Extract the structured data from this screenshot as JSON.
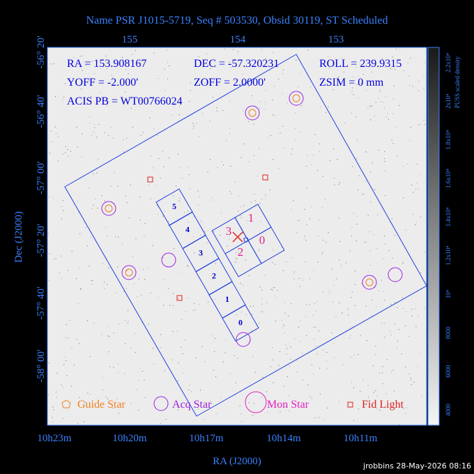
{
  "title": "Name PSR J1015-5719, Seq # 503530, Obsid 30119, ST Scheduled",
  "info": {
    "ra": "RA = 153.908167",
    "dec": "DEC = -57.320231",
    "roll": "ROLL = 239.9315",
    "yoff": "YOFF =  -2.000'",
    "zoff": "ZOFF =  2.0000'",
    "zsim": "ZSIM = 0 mm",
    "acis_pb": "ACIS PB = WT00766024"
  },
  "top_axis_labels": [
    "155",
    "154",
    "153"
  ],
  "left_axis_labels": [
    "-56° 20'",
    "-56° 40'",
    "-57° 00'",
    "-57° 20'",
    "-57° 40'",
    "-58° 00'"
  ],
  "bottom_axis_labels": [
    "10h23m",
    "10h20m",
    "10h17m",
    "10h14m",
    "10h11m"
  ],
  "x_axis_title": "RA (J2000)",
  "y_axis_title": "Dec (J2000)",
  "colorbar_labels": [
    "4000",
    "6000",
    "8000",
    "10⁴",
    "1.2x10⁴",
    "1.4x10⁴",
    "1.6x10⁴",
    "1.8x10⁴",
    "2x10⁴",
    "2.2x10⁴"
  ],
  "colorbar_title": "PUSS scaled density",
  "s_chips": [
    "5",
    "4",
    "3",
    "2",
    "1",
    "0"
  ],
  "i_chips": [
    "3",
    "1",
    "2",
    "0"
  ],
  "legend": [
    "Guide Star",
    "Acq Star",
    "Mon Star",
    "Fid Light"
  ],
  "footer": "jrobbins 28-May-2026 08:16"
}
